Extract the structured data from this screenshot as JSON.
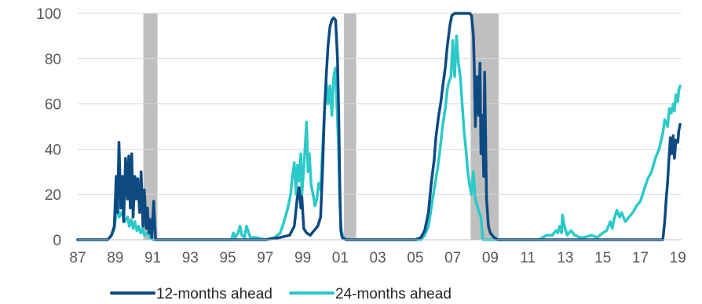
{
  "chart_data": {
    "type": "line",
    "title": "",
    "xlabel": "",
    "ylabel": "",
    "ylim": [
      0,
      100
    ],
    "xlim": [
      1987,
      2019.2
    ],
    "y_ticks": [
      0,
      20,
      40,
      60,
      80,
      100
    ],
    "x_ticks": [
      {
        "value": 1987,
        "label": "87"
      },
      {
        "value": 1989,
        "label": "89"
      },
      {
        "value": 1991,
        "label": "91"
      },
      {
        "value": 1993,
        "label": "93"
      },
      {
        "value": 1995,
        "label": "95"
      },
      {
        "value": 1997,
        "label": "97"
      },
      {
        "value": 1999,
        "label": "99"
      },
      {
        "value": 2001,
        "label": "01"
      },
      {
        "value": 2003,
        "label": "03"
      },
      {
        "value": 2005,
        "label": "05"
      },
      {
        "value": 2007,
        "label": "07"
      },
      {
        "value": 2009,
        "label": "09"
      },
      {
        "value": 2011,
        "label": "11"
      },
      {
        "value": 2013,
        "label": "13"
      },
      {
        "value": 2015,
        "label": "15"
      },
      {
        "value": 2017,
        "label": "17"
      },
      {
        "value": 2019,
        "label": "19"
      }
    ],
    "grid": true,
    "legend": "bottom",
    "recession_shading": [
      {
        "start": 1990.5,
        "end": 1991.25
      },
      {
        "start": 2001.2,
        "end": 2001.85
      },
      {
        "start": 2007.95,
        "end": 2009.45
      }
    ],
    "series": [
      {
        "name": "12-months ahead",
        "color": "#0e4a82",
        "points": [
          [
            1987.0,
            0
          ],
          [
            1988.6,
            0
          ],
          [
            1988.8,
            2
          ],
          [
            1988.95,
            6
          ],
          [
            1989.05,
            28
          ],
          [
            1989.12,
            12
          ],
          [
            1989.2,
            43
          ],
          [
            1989.3,
            14
          ],
          [
            1989.38,
            28
          ],
          [
            1989.45,
            8
          ],
          [
            1989.55,
            36
          ],
          [
            1989.65,
            18
          ],
          [
            1989.72,
            37
          ],
          [
            1989.8,
            14
          ],
          [
            1989.88,
            38
          ],
          [
            1989.95,
            10
          ],
          [
            1990.05,
            28
          ],
          [
            1990.12,
            18
          ],
          [
            1990.2,
            27
          ],
          [
            1990.3,
            12
          ],
          [
            1990.38,
            30
          ],
          [
            1990.48,
            6
          ],
          [
            1990.55,
            22
          ],
          [
            1990.65,
            5
          ],
          [
            1990.72,
            14
          ],
          [
            1990.8,
            3
          ],
          [
            1990.85,
            9
          ],
          [
            1990.95,
            1
          ],
          [
            1991.05,
            17
          ],
          [
            1991.15,
            0
          ],
          [
            1991.3,
            0
          ],
          [
            1997.0,
            0
          ],
          [
            1997.8,
            1
          ],
          [
            1998.3,
            2
          ],
          [
            1998.55,
            6
          ],
          [
            1998.7,
            18
          ],
          [
            1998.8,
            23
          ],
          [
            1998.9,
            14
          ],
          [
            1998.95,
            19
          ],
          [
            1999.05,
            5
          ],
          [
            1999.2,
            3
          ],
          [
            1999.4,
            2
          ],
          [
            1999.6,
            4
          ],
          [
            1999.8,
            6
          ],
          [
            1999.95,
            10
          ],
          [
            2000.05,
            30
          ],
          [
            2000.15,
            55
          ],
          [
            2000.25,
            72
          ],
          [
            2000.35,
            86
          ],
          [
            2000.45,
            94
          ],
          [
            2000.55,
            97
          ],
          [
            2000.65,
            98
          ],
          [
            2000.75,
            97
          ],
          [
            2000.85,
            80
          ],
          [
            2000.92,
            55
          ],
          [
            2000.98,
            20
          ],
          [
            2001.03,
            4
          ],
          [
            2001.1,
            1
          ],
          [
            2001.3,
            0
          ],
          [
            2005.0,
            0
          ],
          [
            2005.3,
            1
          ],
          [
            2005.5,
            4
          ],
          [
            2005.7,
            12
          ],
          [
            2005.85,
            25
          ],
          [
            2006.0,
            35
          ],
          [
            2006.1,
            45
          ],
          [
            2006.25,
            55
          ],
          [
            2006.35,
            60
          ],
          [
            2006.5,
            70
          ],
          [
            2006.6,
            76
          ],
          [
            2006.7,
            85
          ],
          [
            2006.85,
            95
          ],
          [
            2006.95,
            99
          ],
          [
            2007.1,
            100
          ],
          [
            2007.6,
            100
          ],
          [
            2007.9,
            100
          ],
          [
            2008.0,
            99
          ],
          [
            2008.1,
            90
          ],
          [
            2008.15,
            75
          ],
          [
            2008.2,
            50
          ],
          [
            2008.3,
            72
          ],
          [
            2008.38,
            55
          ],
          [
            2008.45,
            78
          ],
          [
            2008.5,
            38
          ],
          [
            2008.58,
            55
          ],
          [
            2008.65,
            28
          ],
          [
            2008.7,
            74
          ],
          [
            2008.8,
            18
          ],
          [
            2008.9,
            6
          ],
          [
            2009.0,
            3
          ],
          [
            2009.2,
            1
          ],
          [
            2009.4,
            0
          ],
          [
            2018.0,
            0
          ],
          [
            2018.2,
            0
          ],
          [
            2018.3,
            8
          ],
          [
            2018.38,
            18
          ],
          [
            2018.45,
            25
          ],
          [
            2018.52,
            35
          ],
          [
            2018.6,
            45
          ],
          [
            2018.68,
            38
          ],
          [
            2018.75,
            46
          ],
          [
            2018.82,
            36
          ],
          [
            2018.9,
            44
          ],
          [
            2019.0,
            43
          ],
          [
            2019.05,
            48
          ],
          [
            2019.12,
            51
          ]
        ]
      },
      {
        "name": "24-months ahead",
        "color": "#2cc9c9",
        "points": [
          [
            1987.0,
            0
          ],
          [
            1988.6,
            0
          ],
          [
            1988.8,
            2
          ],
          [
            1988.95,
            5
          ],
          [
            1989.05,
            12
          ],
          [
            1989.12,
            18
          ],
          [
            1989.2,
            10
          ],
          [
            1989.35,
            12
          ],
          [
            1989.5,
            8
          ],
          [
            1989.65,
            10
          ],
          [
            1989.75,
            6
          ],
          [
            1989.85,
            9
          ],
          [
            1989.95,
            5
          ],
          [
            1990.05,
            8
          ],
          [
            1990.15,
            4
          ],
          [
            1990.25,
            6
          ],
          [
            1990.35,
            3
          ],
          [
            1990.45,
            5
          ],
          [
            1990.55,
            2
          ],
          [
            1990.7,
            3
          ],
          [
            1990.85,
            1
          ],
          [
            1991.0,
            0
          ],
          [
            1995.0,
            0
          ],
          [
            1995.2,
            0
          ],
          [
            1995.3,
            3
          ],
          [
            1995.4,
            1
          ],
          [
            1995.55,
            3
          ],
          [
            1995.65,
            6
          ],
          [
            1995.75,
            2
          ],
          [
            1995.9,
            1
          ],
          [
            1996.0,
            6
          ],
          [
            1996.2,
            1
          ],
          [
            1996.5,
            1
          ],
          [
            1997.0,
            0
          ],
          [
            1997.5,
            1
          ],
          [
            1997.8,
            3
          ],
          [
            1998.0,
            8
          ],
          [
            1998.2,
            14
          ],
          [
            1998.35,
            20
          ],
          [
            1998.45,
            28
          ],
          [
            1998.55,
            34
          ],
          [
            1998.65,
            20
          ],
          [
            1998.72,
            33
          ],
          [
            1998.8,
            26
          ],
          [
            1998.9,
            38
          ],
          [
            1998.95,
            20
          ],
          [
            1999.05,
            31
          ],
          [
            1999.12,
            40
          ],
          [
            1999.2,
            52
          ],
          [
            1999.28,
            30
          ],
          [
            1999.35,
            38
          ],
          [
            1999.45,
            24
          ],
          [
            1999.55,
            20
          ],
          [
            1999.65,
            15
          ],
          [
            1999.75,
            18
          ],
          [
            1999.85,
            25
          ],
          [
            1999.95,
            22
          ],
          [
            2000.05,
            40
          ],
          [
            2000.15,
            55
          ],
          [
            2000.25,
            70
          ],
          [
            2000.35,
            60
          ],
          [
            2000.45,
            68
          ],
          [
            2000.55,
            55
          ],
          [
            2000.65,
            72
          ],
          [
            2000.75,
            76
          ],
          [
            2000.82,
            60
          ],
          [
            2000.9,
            42
          ],
          [
            2000.98,
            15
          ],
          [
            2001.05,
            5
          ],
          [
            2001.15,
            1
          ],
          [
            2001.4,
            0
          ],
          [
            2005.0,
            0
          ],
          [
            2005.3,
            0
          ],
          [
            2005.5,
            2
          ],
          [
            2005.7,
            6
          ],
          [
            2005.85,
            14
          ],
          [
            2006.0,
            22
          ],
          [
            2006.2,
            32
          ],
          [
            2006.35,
            42
          ],
          [
            2006.45,
            50
          ],
          [
            2006.6,
            58
          ],
          [
            2006.7,
            66
          ],
          [
            2006.8,
            70
          ],
          [
            2006.9,
            72
          ],
          [
            2007.0,
            88
          ],
          [
            2007.1,
            72
          ],
          [
            2007.2,
            90
          ],
          [
            2007.3,
            78
          ],
          [
            2007.4,
            72
          ],
          [
            2007.5,
            60
          ],
          [
            2007.6,
            48
          ],
          [
            2007.7,
            40
          ],
          [
            2007.8,
            30
          ],
          [
            2007.9,
            24
          ],
          [
            2008.0,
            20
          ],
          [
            2008.1,
            30
          ],
          [
            2008.2,
            18
          ],
          [
            2008.3,
            15
          ],
          [
            2008.4,
            12
          ],
          [
            2008.5,
            10
          ],
          [
            2008.6,
            0
          ],
          [
            2009.0,
            0
          ],
          [
            2011.0,
            0
          ],
          [
            2011.6,
            0
          ],
          [
            2011.8,
            1
          ],
          [
            2012.0,
            2
          ],
          [
            2012.3,
            2
          ],
          [
            2012.5,
            4
          ],
          [
            2012.6,
            3
          ],
          [
            2012.7,
            6
          ],
          [
            2012.8,
            3
          ],
          [
            2012.85,
            11
          ],
          [
            2012.95,
            6
          ],
          [
            2013.1,
            2
          ],
          [
            2013.3,
            4
          ],
          [
            2013.5,
            2
          ],
          [
            2013.8,
            1
          ],
          [
            2014.0,
            1
          ],
          [
            2014.4,
            2
          ],
          [
            2014.7,
            1
          ],
          [
            2015.0,
            3
          ],
          [
            2015.2,
            4
          ],
          [
            2015.4,
            8
          ],
          [
            2015.5,
            5
          ],
          [
            2015.6,
            9
          ],
          [
            2015.75,
            13
          ],
          [
            2015.9,
            10
          ],
          [
            2016.0,
            12
          ],
          [
            2016.2,
            8
          ],
          [
            2016.4,
            10
          ],
          [
            2016.6,
            12
          ],
          [
            2016.8,
            15
          ],
          [
            2017.0,
            17
          ],
          [
            2017.2,
            22
          ],
          [
            2017.4,
            27
          ],
          [
            2017.6,
            30
          ],
          [
            2017.8,
            36
          ],
          [
            2018.0,
            40
          ],
          [
            2018.2,
            47
          ],
          [
            2018.3,
            53
          ],
          [
            2018.45,
            50
          ],
          [
            2018.55,
            58
          ],
          [
            2018.65,
            56
          ],
          [
            2018.75,
            60
          ],
          [
            2018.82,
            57
          ],
          [
            2018.9,
            64
          ],
          [
            2019.0,
            61
          ],
          [
            2019.05,
            66
          ],
          [
            2019.12,
            68
          ]
        ]
      }
    ]
  }
}
